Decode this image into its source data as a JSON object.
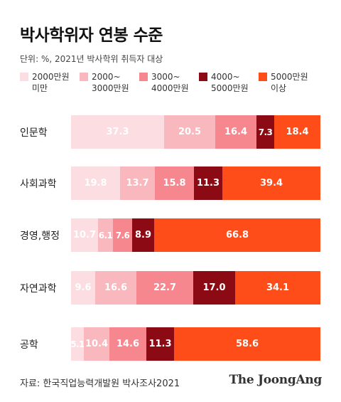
{
  "title": "박사학위자 연봉 수준",
  "unit_note": "단위: %, 2021년 박사학위 취득자 대상",
  "source": "자료: 한국직업능력개발원 박사조사2021",
  "logo": "The JoongAng",
  "colors": {
    "s1": "#fbdde2",
    "s2": "#f9b7be",
    "s3": "#f6878f",
    "s4": "#8c0a14",
    "s5": "#ff4d1a"
  },
  "chart_data": {
    "type": "bar",
    "orientation": "horizontal",
    "stacked": true,
    "categories": [
      "인문학",
      "사회과학",
      "경영,행정",
      "자연과학",
      "공학"
    ],
    "series": [
      {
        "name": "2000만원 미만",
        "legend": [
          "2000만원",
          "미만"
        ],
        "color": "#fbdde2",
        "values": [
          37.3,
          19.8,
          10.7,
          9.6,
          5.1
        ]
      },
      {
        "name": "2000~3000만원",
        "legend": [
          "2000~",
          "3000만원"
        ],
        "color": "#f9b7be",
        "values": [
          20.5,
          13.7,
          6.1,
          16.6,
          10.4
        ]
      },
      {
        "name": "3000~4000만원",
        "legend": [
          "3000~",
          "4000만원"
        ],
        "color": "#f6878f",
        "values": [
          16.4,
          15.8,
          7.6,
          22.7,
          14.6
        ]
      },
      {
        "name": "4000~5000만원",
        "legend": [
          "4000~",
          "5000만원"
        ],
        "color": "#8c0a14",
        "values": [
          7.3,
          11.3,
          8.9,
          17.0,
          11.3
        ]
      },
      {
        "name": "5000만원 이상",
        "legend": [
          "5000만원",
          "이상"
        ],
        "color": "#ff4d1a",
        "values": [
          18.4,
          39.4,
          66.8,
          34.1,
          58.6
        ]
      }
    ],
    "xlim": [
      0,
      100
    ],
    "value_labels": true,
    "legend_position": "top",
    "grid": false
  }
}
